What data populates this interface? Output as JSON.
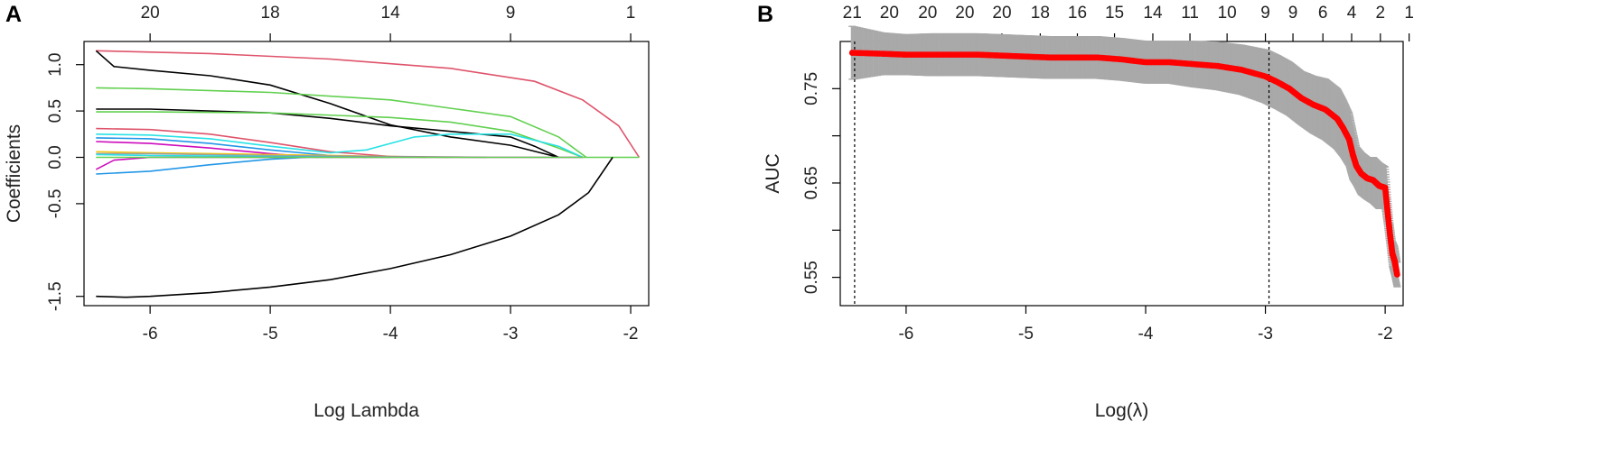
{
  "chart_data": [
    {
      "panel_label": "A",
      "type": "line",
      "xlabel": "Log Lambda",
      "ylabel": "Coefficients",
      "xlim": [
        -6.55,
        -1.85
      ],
      "ylim": [
        -1.6,
        1.25
      ],
      "x_ticks": [
        -6,
        -5,
        -4,
        -3,
        -2
      ],
      "y_ticks": [
        1.0,
        0.5,
        0.0,
        -0.5,
        -1.5
      ],
      "y_tick_labels": [
        "1.0",
        "0.5",
        "0.0",
        "-0.5",
        "-1.5"
      ],
      "top_ticks": [
        {
          "x": -6.0,
          "label": "20"
        },
        {
          "x": -5.0,
          "label": "18"
        },
        {
          "x": -4.0,
          "label": "14"
        },
        {
          "x": -3.0,
          "label": "9"
        },
        {
          "x": -2.0,
          "label": "1"
        }
      ],
      "grid": false,
      "series": [
        {
          "color": "#DF536B",
          "points": [
            [
              -6.45,
              1.15
            ],
            [
              -5.5,
              1.12
            ],
            [
              -4.5,
              1.06
            ],
            [
              -3.5,
              0.96
            ],
            [
              -2.8,
              0.82
            ],
            [
              -2.4,
              0.62
            ],
            [
              -2.1,
              0.34
            ],
            [
              -1.93,
              0.0
            ]
          ]
        },
        {
          "color": "#000000",
          "points": [
            [
              -6.45,
              1.15
            ],
            [
              -6.3,
              0.98
            ],
            [
              -6.0,
              0.94
            ],
            [
              -5.5,
              0.88
            ],
            [
              -5.0,
              0.78
            ],
            [
              -4.5,
              0.58
            ],
            [
              -4.0,
              0.35
            ],
            [
              -3.5,
              0.22
            ],
            [
              -3.0,
              0.13
            ],
            [
              -2.6,
              0.0
            ]
          ]
        },
        {
          "color": "#61D04F",
          "points": [
            [
              -6.45,
              0.75
            ],
            [
              -6.0,
              0.74
            ],
            [
              -5.0,
              0.7
            ],
            [
              -4.0,
              0.62
            ],
            [
              -3.0,
              0.44
            ],
            [
              -2.6,
              0.22
            ],
            [
              -2.37,
              0.0
            ]
          ]
        },
        {
          "color": "#000000",
          "points": [
            [
              -6.45,
              0.52
            ],
            [
              -6.0,
              0.52
            ],
            [
              -5.0,
              0.48
            ],
            [
              -4.5,
              0.42
            ],
            [
              -4.0,
              0.34
            ],
            [
              -3.5,
              0.28
            ],
            [
              -3.0,
              0.22
            ],
            [
              -2.8,
              0.12
            ],
            [
              -2.6,
              0.0
            ]
          ]
        },
        {
          "color": "#61D04F",
          "points": [
            [
              -6.45,
              0.49
            ],
            [
              -6.0,
              0.49
            ],
            [
              -5.0,
              0.48
            ],
            [
              -4.0,
              0.43
            ],
            [
              -3.5,
              0.38
            ],
            [
              -3.0,
              0.28
            ],
            [
              -2.6,
              0.1
            ],
            [
              -2.4,
              0.0
            ]
          ]
        },
        {
          "color": "#DF536B",
          "points": [
            [
              -6.45,
              0.31
            ],
            [
              -6.0,
              0.3
            ],
            [
              -5.5,
              0.25
            ],
            [
              -5.0,
              0.16
            ],
            [
              -4.5,
              0.06
            ],
            [
              -4.0,
              0.01
            ],
            [
              -3.7,
              0.0
            ]
          ]
        },
        {
          "color": "#28E2E5",
          "points": [
            [
              -6.45,
              0.25
            ],
            [
              -6.0,
              0.24
            ],
            [
              -5.5,
              0.2
            ],
            [
              -5.0,
              0.12
            ],
            [
              -4.5,
              0.05
            ],
            [
              -4.2,
              0.08
            ],
            [
              -3.8,
              0.22
            ],
            [
              -3.5,
              0.25
            ],
            [
              -3.0,
              0.25
            ],
            [
              -2.6,
              0.12
            ],
            [
              -2.4,
              0.0
            ]
          ]
        },
        {
          "color": "#2297E6",
          "points": [
            [
              -6.45,
              0.21
            ],
            [
              -6.0,
              0.2
            ],
            [
              -5.5,
              0.15
            ],
            [
              -5.0,
              0.08
            ],
            [
              -4.5,
              0.02
            ],
            [
              -4.2,
              0.0
            ]
          ]
        },
        {
          "color": "#CD0BBC",
          "points": [
            [
              -6.45,
              0.17
            ],
            [
              -6.0,
              0.15
            ],
            [
              -5.5,
              0.1
            ],
            [
              -5.0,
              0.04
            ],
            [
              -4.6,
              0.0
            ]
          ]
        },
        {
          "color": "#F5C710",
          "points": [
            [
              -6.45,
              0.06
            ],
            [
              -6.0,
              0.05
            ],
            [
              -5.0,
              0.03
            ],
            [
              -4.0,
              0.01
            ],
            [
              -3.5,
              0.0
            ]
          ]
        },
        {
          "color": "#9E9E9E",
          "points": [
            [
              -6.45,
              0.04
            ],
            [
              -6.0,
              0.04
            ],
            [
              -5.0,
              0.02
            ],
            [
              -4.0,
              0.01
            ],
            [
              -3.2,
              0.0
            ]
          ]
        },
        {
          "color": "#28E2E5",
          "points": [
            [
              -6.45,
              0.03
            ],
            [
              -6.0,
              0.02
            ],
            [
              -5.0,
              0.01
            ],
            [
              -4.0,
              0.0
            ]
          ]
        },
        {
          "color": "#2297E6",
          "points": [
            [
              -6.45,
              -0.18
            ],
            [
              -6.0,
              -0.15
            ],
            [
              -5.5,
              -0.08
            ],
            [
              -5.0,
              -0.02
            ],
            [
              -4.7,
              0.0
            ]
          ]
        },
        {
          "color": "#CD0BBC",
          "points": [
            [
              -6.45,
              -0.13
            ],
            [
              -6.3,
              -0.03
            ],
            [
              -6.0,
              0.0
            ],
            [
              -4.0,
              0.0
            ],
            [
              -3.0,
              0.0
            ],
            [
              -2.4,
              0.0
            ]
          ]
        },
        {
          "color": "#61D04F",
          "points": [
            [
              -6.45,
              0.0
            ],
            [
              -5.0,
              0.0
            ],
            [
              -3.0,
              0.0
            ],
            [
              -1.93,
              0.0
            ]
          ]
        },
        {
          "color": "#000000",
          "points": [
            [
              -6.45,
              -1.5
            ],
            [
              -6.2,
              -1.51
            ],
            [
              -6.0,
              -1.5
            ],
            [
              -5.5,
              -1.46
            ],
            [
              -5.0,
              -1.4
            ],
            [
              -4.5,
              -1.32
            ],
            [
              -4.0,
              -1.2
            ],
            [
              -3.5,
              -1.05
            ],
            [
              -3.0,
              -0.85
            ],
            [
              -2.6,
              -0.62
            ],
            [
              -2.35,
              -0.38
            ],
            [
              -2.15,
              0.0
            ]
          ]
        }
      ]
    },
    {
      "panel_label": "B",
      "type": "scatter",
      "xlabel": "Log(λ)",
      "ylabel": "AUC",
      "xlim": [
        -6.55,
        -1.85
      ],
      "ylim": [
        0.52,
        0.8
      ],
      "x_ticks": [
        -6,
        -5,
        -4,
        -3,
        -2
      ],
      "y_ticks": [
        0.55,
        0.6,
        0.65,
        0.7,
        0.75
      ],
      "y_tick_labels": [
        "0.55",
        "",
        "0.65",
        "",
        "0.75"
      ],
      "top_ticks": [
        {
          "x": -6.45,
          "label": "21"
        },
        {
          "x": -6.14,
          "label": "20"
        },
        {
          "x": -5.82,
          "label": "20"
        },
        {
          "x": -5.51,
          "label": "20"
        },
        {
          "x": -5.2,
          "label": "20"
        },
        {
          "x": -4.88,
          "label": "18"
        },
        {
          "x": -4.57,
          "label": "16"
        },
        {
          "x": -4.26,
          "label": "15"
        },
        {
          "x": -3.94,
          "label": "14"
        },
        {
          "x": -3.63,
          "label": "11"
        },
        {
          "x": -3.32,
          "label": "10"
        },
        {
          "x": -3.0,
          "label": "9"
        },
        {
          "x": -2.77,
          "label": "9"
        },
        {
          "x": -2.52,
          "label": "6"
        },
        {
          "x": -2.28,
          "label": "4"
        },
        {
          "x": -2.04,
          "label": "2"
        },
        {
          "x": -1.8,
          "label": "1"
        }
      ],
      "vlines": [
        -6.43,
        -2.97
      ],
      "point_color": "#FF0000",
      "errorbar_color": "#A9A9A9",
      "grid": false,
      "x": [
        -6.45,
        -6.2,
        -6.0,
        -5.8,
        -5.6,
        -5.4,
        -5.2,
        -5.0,
        -4.8,
        -4.6,
        -4.4,
        -4.2,
        -4.0,
        -3.8,
        -3.6,
        -3.4,
        -3.2,
        -3.0,
        -2.9,
        -2.8,
        -2.7,
        -2.6,
        -2.5,
        -2.4,
        -2.35,
        -2.3,
        -2.27,
        -2.24,
        -2.2,
        -2.15,
        -2.1,
        -2.05,
        -2.0,
        -1.98,
        -1.96,
        -1.94,
        -1.92,
        -1.9
      ],
      "y": [
        0.788,
        0.787,
        0.786,
        0.786,
        0.786,
        0.786,
        0.785,
        0.784,
        0.783,
        0.783,
        0.783,
        0.781,
        0.778,
        0.778,
        0.776,
        0.774,
        0.77,
        0.763,
        0.757,
        0.75,
        0.74,
        0.733,
        0.728,
        0.718,
        0.708,
        0.696,
        0.68,
        0.668,
        0.66,
        0.655,
        0.653,
        0.647,
        0.645,
        0.62,
        0.596,
        0.575,
        0.567,
        0.553
      ],
      "err": [
        0.028,
        0.022,
        0.021,
        0.022,
        0.022,
        0.022,
        0.022,
        0.022,
        0.022,
        0.022,
        0.022,
        0.022,
        0.022,
        0.022,
        0.024,
        0.025,
        0.026,
        0.028,
        0.028,
        0.028,
        0.028,
        0.03,
        0.032,
        0.032,
        0.03,
        0.028,
        0.026,
        0.02,
        0.022,
        0.022,
        0.024,
        0.024,
        0.022,
        0.015,
        0.012,
        0.013,
        0.015,
        0.013
      ]
    }
  ]
}
